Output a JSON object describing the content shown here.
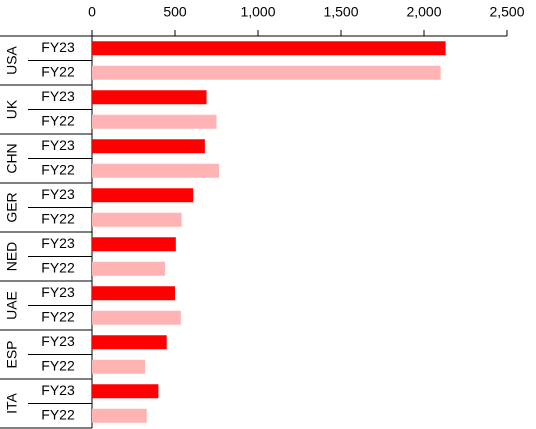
{
  "chart_data": {
    "type": "bar",
    "orientation": "horizontal",
    "categories": [
      "USA",
      "UK",
      "CHN",
      "GER",
      "NED",
      "UAE",
      "ESP",
      "ITA"
    ],
    "series": [
      {
        "name": "FY23",
        "color": "#ff0000",
        "values": [
          2130,
          690,
          680,
          610,
          505,
          500,
          450,
          400
        ]
      },
      {
        "name": "FY22",
        "color": "#ffb3b3",
        "values": [
          2100,
          750,
          765,
          540,
          440,
          535,
          320,
          330
        ]
      }
    ],
    "xlim": [
      0,
      2500
    ],
    "xticks": [
      0,
      500,
      {
        "value": 1000,
        "label": "1,000"
      },
      {
        "value": 1500,
        "label": "1,500"
      },
      {
        "value": 2000,
        "label": "2,000"
      },
      {
        "value": 2500,
        "label": "2,500"
      }
    ]
  }
}
